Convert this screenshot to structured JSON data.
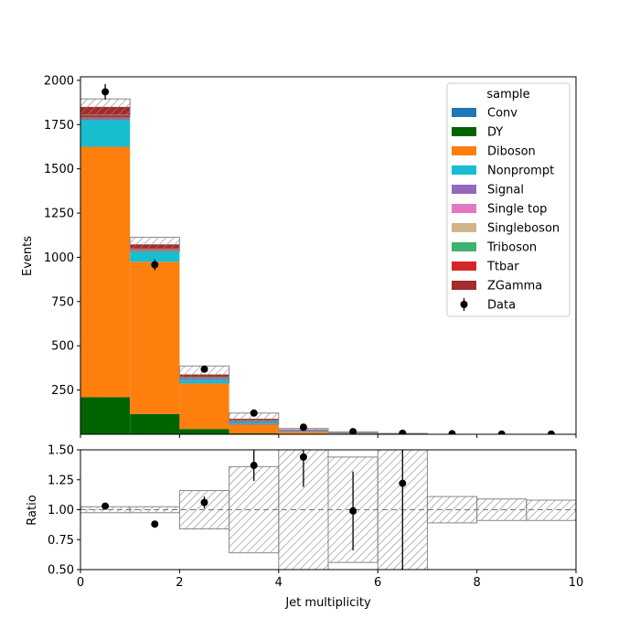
{
  "chart_data": [
    {
      "type": "bar",
      "stacked": true,
      "bin_edges": [
        0,
        1,
        2,
        3,
        4,
        5,
        6,
        7,
        8,
        9,
        10
      ],
      "ylabel": "Events",
      "xlim": [
        0,
        10
      ],
      "ylim": [
        0,
        2020
      ],
      "y_ticks": [
        250,
        500,
        750,
        1000,
        1250,
        1500,
        1750,
        2000
      ],
      "legend_title": "sample",
      "legend_position": "top-right",
      "series": [
        {
          "name": "Conv",
          "color": "#1f77b4",
          "values": [
            0,
            0,
            0,
            0,
            0,
            0,
            0,
            0,
            0,
            0
          ]
        },
        {
          "name": "DY",
          "color": "#006400",
          "values": [
            210,
            115,
            30,
            5,
            0,
            0,
            0,
            0,
            0,
            0
          ]
        },
        {
          "name": "Diboson",
          "color": "#ff7f0e",
          "values": [
            1415,
            860,
            255,
            50,
            12,
            3,
            1,
            0,
            0,
            0
          ]
        },
        {
          "name": "Nonprompt",
          "color": "#17becf",
          "values": [
            150,
            55,
            25,
            12,
            3,
            1,
            0,
            0,
            0,
            0
          ]
        },
        {
          "name": "Signal",
          "color": "#9467bd",
          "values": [
            10,
            10,
            8,
            8,
            4,
            2,
            1,
            0,
            0,
            0
          ]
        },
        {
          "name": "Single top",
          "color": "#e377c2",
          "values": [
            0,
            0,
            0,
            0,
            0,
            0,
            0,
            0,
            0,
            0
          ]
        },
        {
          "name": "Singleboson",
          "color": "#d2b48c",
          "values": [
            0,
            0,
            0,
            0,
            0,
            0,
            0,
            0,
            0,
            0
          ]
        },
        {
          "name": "Triboson",
          "color": "#3cb371",
          "values": [
            5,
            5,
            5,
            5,
            4,
            3,
            1,
            0,
            0,
            0
          ]
        },
        {
          "name": "Ttbar",
          "color": "#d62728",
          "values": [
            15,
            8,
            5,
            3,
            2,
            1,
            0,
            0,
            0,
            0
          ]
        },
        {
          "name": "ZGamma",
          "color": "#a52a2a",
          "values": [
            45,
            20,
            10,
            5,
            2,
            1,
            0,
            0,
            0,
            0
          ]
        }
      ],
      "uncertainty": [
        45,
        40,
        48,
        32,
        6,
        3,
        2,
        0,
        0,
        0
      ],
      "data": {
        "name": "Data",
        "color": "#000000",
        "values": [
          1935,
          958,
          368,
          120,
          40,
          15,
          6,
          3,
          1,
          1
        ],
        "errors": [
          44,
          31,
          19,
          11,
          6,
          4,
          2,
          2,
          1,
          1
        ]
      }
    },
    {
      "type": "scatter",
      "xlabel": "Jet multiplicity",
      "ylabel": "Ratio",
      "xlim": [
        0,
        10
      ],
      "ylim": [
        0.5,
        1.5
      ],
      "x_ticks": [
        0,
        2,
        4,
        6,
        8,
        10
      ],
      "y_ticks": [
        0.5,
        0.75,
        1.0,
        1.25,
        1.5
      ],
      "y_tick_labels": [
        "0.50",
        "0.75",
        "1.00",
        "1.25",
        "1.50"
      ],
      "reference_line": 1.0,
      "uncertainty_band": [
        [
          0.975,
          1.025
        ],
        [
          0.975,
          1.025
        ],
        [
          0.84,
          1.16
        ],
        [
          0.64,
          1.36
        ],
        [
          0.0,
          2.0
        ],
        [
          0.56,
          1.44
        ],
        [
          0.5,
          1.5
        ],
        [
          0.89,
          1.11
        ],
        [
          0.91,
          1.09
        ],
        [
          0.91,
          1.08
        ]
      ],
      "points": [
        {
          "x": 0.5,
          "y": 1.03,
          "err": 0.0
        },
        {
          "x": 1.5,
          "y": 0.88,
          "err": 0.0
        },
        {
          "x": 2.5,
          "y": 1.06,
          "err": 0.05
        },
        {
          "x": 3.5,
          "y": 1.37,
          "err": 0.13
        },
        {
          "x": 4.5,
          "y": 1.44,
          "err": 0.25
        },
        {
          "x": 5.5,
          "y": 0.99,
          "err": 0.33
        },
        {
          "x": 6.5,
          "y": 1.22,
          "err": 0.9
        }
      ]
    }
  ]
}
